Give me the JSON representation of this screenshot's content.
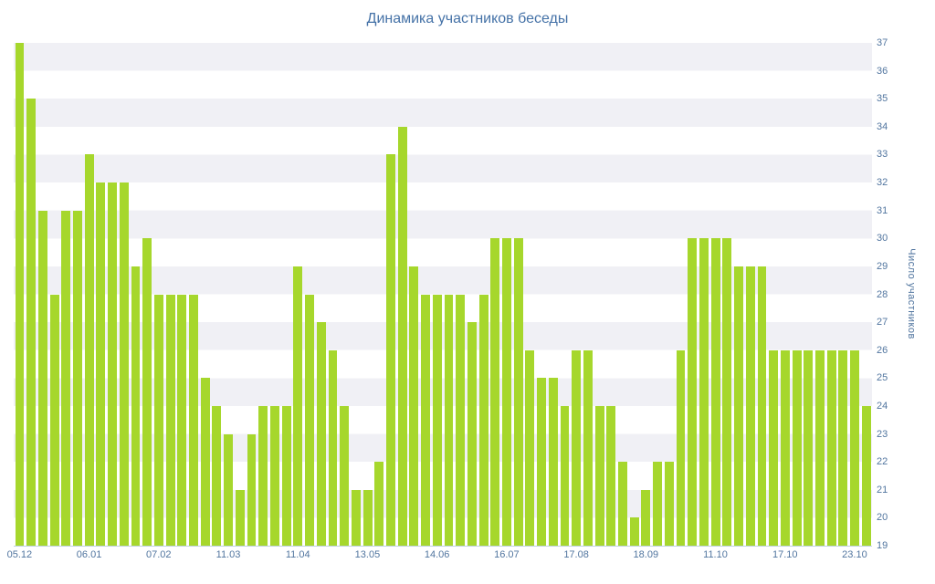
{
  "chart": {
    "title_color": "#4572a7",
    "label_color": "#51759f",
    "bar_color": "#a6d72c",
    "band_color": "#f0f0f5",
    "axis_line_color": "#c0d0e0"
  },
  "chart_data": {
    "type": "bar",
    "title": "Динамика участников беседы",
    "xlabel": "",
    "ylabel": "Число участников",
    "ylim": [
      19,
      37
    ],
    "y_ticks": [
      19,
      20,
      21,
      22,
      23,
      24,
      25,
      26,
      27,
      28,
      29,
      30,
      31,
      32,
      33,
      34,
      35,
      36,
      37
    ],
    "x_tick_labels": [
      "05.12",
      "06.01",
      "07.02",
      "11.03",
      "11.04",
      "13.05",
      "14.06",
      "16.07",
      "17.08",
      "18.09",
      "11.10",
      "17.10",
      "23.10"
    ],
    "x_tick_positions": [
      0,
      6,
      12,
      18,
      24,
      30,
      36,
      42,
      48,
      54,
      60,
      66,
      72
    ],
    "values": [
      37,
      35,
      31,
      28,
      31,
      31,
      33,
      32,
      32,
      32,
      29,
      30,
      28,
      28,
      28,
      28,
      25,
      24,
      23,
      21,
      23,
      24,
      24,
      24,
      29,
      28,
      27,
      26,
      24,
      21,
      21,
      22,
      33,
      34,
      29,
      28,
      28,
      28,
      28,
      27,
      28,
      30,
      30,
      30,
      26,
      25,
      25,
      24,
      26,
      26,
      24,
      24,
      22,
      20,
      21,
      22,
      22,
      26,
      30,
      30,
      30,
      30,
      29,
      29,
      29,
      26,
      26,
      26,
      26,
      26,
      26,
      26,
      26,
      24
    ],
    "legend": "none",
    "grid": "alternating-bands"
  }
}
